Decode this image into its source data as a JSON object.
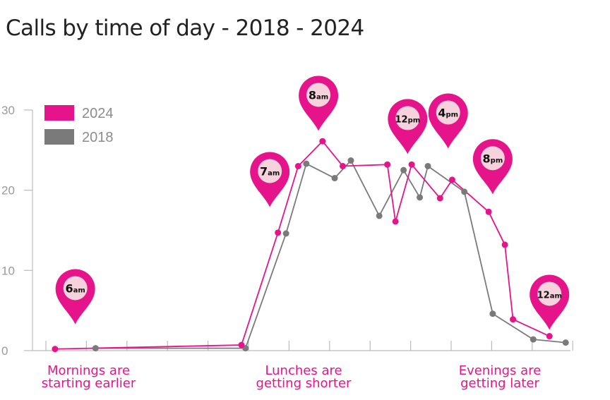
{
  "title": "Calls by time of day - 2018 - 2024",
  "colors": {
    "s2024": "#e5148a",
    "s2018": "#7a7a7a",
    "axis": "#bbbbbb",
    "pinInner": "#f6d3dc",
    "annot": "#e5148a"
  },
  "chart_data": {
    "type": "line",
    "title": "Calls by time of day - 2018 - 2024",
    "xlabel": "",
    "ylabel": "",
    "ylim": [
      0,
      30
    ],
    "yticks": [
      0,
      10,
      20,
      30
    ],
    "grid": false,
    "legend": {
      "placement": "top-left",
      "entries": [
        "2024",
        "2018"
      ]
    },
    "series": [
      {
        "name": "2024",
        "points": [
          [
            0.4,
            0.2
          ],
          [
            5.0,
            0.7
          ],
          [
            5.9,
            14.7
          ],
          [
            6.4,
            23.0
          ],
          [
            7.0,
            26.1
          ],
          [
            7.5,
            23.0
          ],
          [
            8.6,
            23.2
          ],
          [
            8.8,
            16.1
          ],
          [
            9.2,
            23.2
          ],
          [
            9.9,
            19.0
          ],
          [
            10.2,
            21.3
          ],
          [
            11.1,
            17.3
          ],
          [
            11.5,
            13.2
          ],
          [
            11.7,
            3.9
          ],
          [
            12.6,
            1.8
          ]
        ]
      },
      {
        "name": "2018",
        "points": [
          [
            1.4,
            0.3
          ],
          [
            5.1,
            0.3
          ],
          [
            6.1,
            14.6
          ],
          [
            6.6,
            23.3
          ],
          [
            7.3,
            21.5
          ],
          [
            7.7,
            23.7
          ],
          [
            8.4,
            16.8
          ],
          [
            9.0,
            22.5
          ],
          [
            9.4,
            19.1
          ],
          [
            9.6,
            23.0
          ],
          [
            10.5,
            19.8
          ],
          [
            11.2,
            4.6
          ],
          [
            12.2,
            1.4
          ],
          [
            13.0,
            1.0
          ]
        ]
      }
    ],
    "pins": [
      {
        "num": "6",
        "suffix": "am",
        "hour": 0.9,
        "y": 3.3
      },
      {
        "num": "7",
        "suffix": "am",
        "hour": 5.7,
        "y": 17.9
      },
      {
        "num": "8",
        "suffix": "am",
        "hour": 6.9,
        "y": 27.4
      },
      {
        "num": "12",
        "suffix": "pm",
        "hour": 9.1,
        "y": 24.5
      },
      {
        "num": "4",
        "suffix": "pm",
        "hour": 10.1,
        "y": 25.2
      },
      {
        "num": "8",
        "suffix": "pm",
        "hour": 11.2,
        "y": 19.5
      },
      {
        "num": "12",
        "suffix": "am",
        "hour": 12.6,
        "y": 2.6
      }
    ],
    "annotations": [
      {
        "line1": "Mornings are",
        "line2": "starting earlier"
      },
      {
        "line1": "Lunches are",
        "line2": "getting shorter"
      },
      {
        "line1": "Evenings are",
        "line2": "getting later"
      }
    ]
  }
}
